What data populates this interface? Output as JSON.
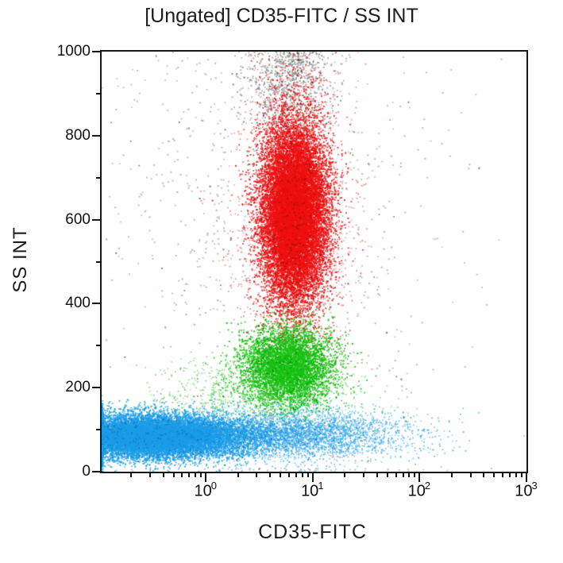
{
  "chart_data": {
    "type": "scatter",
    "title": "[Ungated] CD35-FITC / SS INT",
    "xlabel": "CD35-FITC",
    "ylabel": "SS INT",
    "x_scale": "log",
    "x_range_log10": [
      -0.975,
      3
    ],
    "y_scale": "linear",
    "ylim": [
      0,
      1000
    ],
    "grid": false,
    "legend": "none",
    "x_major_tick_exponents": [
      0,
      1,
      2,
      3
    ],
    "x_minor_tick_decades": [
      -1,
      0,
      1,
      2
    ],
    "y_major_ticks": [
      {
        "value": 0,
        "label": "0"
      },
      {
        "value": 200,
        "label": "200"
      },
      {
        "value": 400,
        "label": "400"
      },
      {
        "value": 600,
        "label": "600"
      },
      {
        "value": 800,
        "label": "800"
      },
      {
        "value": 1000,
        "label": "1000"
      }
    ],
    "y_minor_ticks": [
      100,
      300,
      500,
      700,
      900
    ],
    "populations": [
      {
        "name": "debris-gray-uniform",
        "color": "#9b9b9b",
        "color_dark": "#3c3c3c",
        "count": 900,
        "x_log10_mean": 0.55,
        "x_log10_sd": 0.85,
        "y_mean": 520,
        "y_sd": 340,
        "dot": 1.6,
        "alpha": 0.65,
        "clamp_left": false
      },
      {
        "name": "debris-gray-top-plume",
        "color": "#8e8e8e",
        "color_dark": "#454545",
        "count": 850,
        "x_log10_mean": 0.78,
        "x_log10_sd": 0.2,
        "y_mean": 930,
        "y_sd": 78,
        "dot": 1.5,
        "alpha": 0.75,
        "clamp_left": false
      },
      {
        "name": "granulocytes-red-fringe",
        "color": "#f03030",
        "color_dark": "#900000",
        "count": 1500,
        "x_log10_mean": 0.83,
        "x_log10_sd": 0.3,
        "y_mean": 620,
        "y_sd": 175,
        "dot": 1.4,
        "alpha": 0.55,
        "clamp_left": false
      },
      {
        "name": "granulocytes-red",
        "color": "#ee1111",
        "color_dark": "#a00808",
        "count": 17000,
        "x_log10_mean": 0.83,
        "x_log10_sd": 0.155,
        "y_mean": 615,
        "y_sd": 108,
        "dot": 1.5,
        "alpha": 0.85,
        "clamp_left": false
      },
      {
        "name": "monocytes-green-tail",
        "color": "#2fca2a",
        "color_dark": "#0a8a08",
        "count": 750,
        "x_log10_mean": 0.45,
        "x_log10_sd": 0.45,
        "y_mean": 185,
        "y_sd": 38,
        "dot": 1.4,
        "alpha": 0.55,
        "clamp_left": false
      },
      {
        "name": "monocytes-green",
        "color": "#16c211",
        "color_dark": "#0a8a08",
        "count": 5200,
        "x_log10_mean": 0.77,
        "x_log10_sd": 0.21,
        "y_mean": 250,
        "y_sd": 46,
        "dot": 1.5,
        "alpha": 0.85,
        "clamp_left": false
      },
      {
        "name": "lymphocytes-blue-tail",
        "color": "#2ba4e8",
        "color_dark": "#0c6fb8",
        "count": 4000,
        "x_log10_mean": 0.8,
        "x_log10_sd": 0.55,
        "y_mean": 88,
        "y_sd": 30,
        "dot": 1.4,
        "alpha": 0.6,
        "clamp_left": false
      },
      {
        "name": "lymphocytes-blue-core",
        "color": "#1b9ee8",
        "color_dark": "#0c6fb8",
        "count": 15500,
        "x_log10_mean": -0.5,
        "x_log10_sd": 0.45,
        "y_mean": 84,
        "y_sd": 26,
        "dot": 1.5,
        "alpha": 0.8,
        "clamp_left": true
      }
    ]
  }
}
